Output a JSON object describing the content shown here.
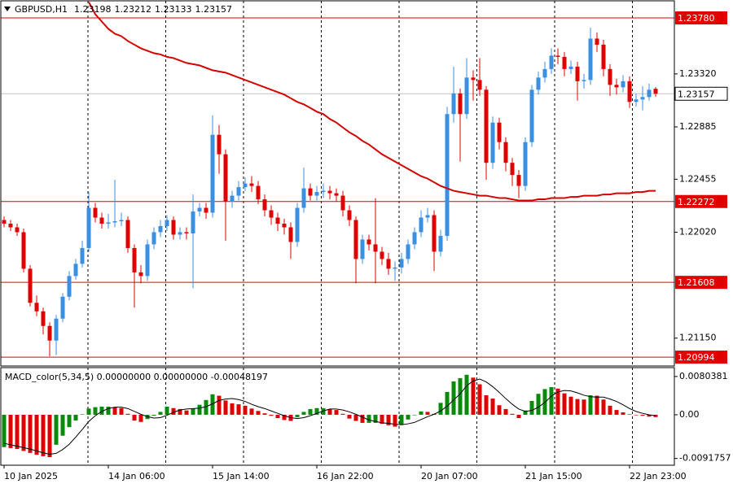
{
  "chart_data": {
    "type": "candlestick",
    "symbol": "GBPUSD,H1",
    "categories": [
      "10 Jan 2025",
      null,
      null,
      null,
      null,
      null,
      null,
      null,
      null,
      null,
      null,
      null,
      null,
      null,
      null,
      null,
      "14 Jan 06:00",
      null,
      null,
      null,
      null,
      null,
      null,
      null,
      null,
      null,
      null,
      null,
      null,
      null,
      null,
      null,
      "15 Jan 14:00",
      null,
      null,
      null,
      null,
      null,
      null,
      null,
      null,
      null,
      null,
      null,
      null,
      null,
      null,
      null,
      "16 Jan 22:00",
      null,
      null,
      null,
      null,
      null,
      null,
      null,
      null,
      null,
      null,
      null,
      null,
      null,
      null,
      null,
      "20 Jan 07:00",
      null,
      null,
      null,
      null,
      null,
      null,
      null,
      null,
      null,
      null,
      null,
      null,
      null,
      null,
      null,
      "21 Jan 15:00",
      null,
      null,
      null,
      null,
      null,
      null,
      null,
      null,
      null,
      null,
      null,
      null,
      null,
      null,
      null,
      "22 Jan 23:00",
      null,
      null,
      null,
      null
    ],
    "ohlc": [
      [
        1.2212,
        1.2215,
        1.2206,
        1.2209
      ],
      [
        1.2209,
        1.2212,
        1.2203,
        1.2206
      ],
      [
        1.2206,
        1.2209,
        1.2199,
        1.2202
      ],
      [
        1.2202,
        1.2205,
        1.2169,
        1.2172
      ],
      [
        1.2172,
        1.2175,
        1.2141,
        1.2144
      ],
      [
        1.2144,
        1.215,
        1.2133,
        1.2137
      ],
      [
        1.2137,
        1.214,
        1.2118,
        1.2125
      ],
      [
        1.2125,
        1.2128,
        1.21,
        1.2113
      ],
      [
        1.2113,
        1.2134,
        1.2101,
        1.2131
      ],
      [
        1.2131,
        1.2152,
        1.2128,
        1.2149
      ],
      [
        1.2149,
        1.217,
        1.2146,
        1.2166
      ],
      [
        1.2166,
        1.218,
        1.2163,
        1.2176
      ],
      [
        1.2176,
        1.2195,
        1.2173,
        1.2189
      ],
      [
        1.2189,
        1.2235,
        1.2186,
        1.2222
      ],
      [
        1.2222,
        1.2226,
        1.221,
        1.2214
      ],
      [
        1.2214,
        1.2218,
        1.2205,
        1.2209
      ],
      [
        1.2209,
        1.2217,
        1.2205,
        1.221
      ],
      [
        1.221,
        1.2245,
        1.2206,
        1.2211
      ],
      [
        1.2211,
        1.2218,
        1.2207,
        1.2212
      ],
      [
        1.2212,
        1.2215,
        1.2185,
        1.2189
      ],
      [
        1.2189,
        1.2192,
        1.214,
        1.2169
      ],
      [
        1.2169,
        1.2175,
        1.216,
        1.2166
      ],
      [
        1.2166,
        1.2196,
        1.2162,
        1.2192
      ],
      [
        1.2192,
        1.2206,
        1.2188,
        1.2202
      ],
      [
        1.2202,
        1.2212,
        1.2198,
        1.2207
      ],
      [
        1.2207,
        1.2216,
        1.2203,
        1.2212
      ],
      [
        1.2212,
        1.2215,
        1.2196,
        1.22
      ],
      [
        1.22,
        1.2206,
        1.2196,
        1.2202
      ],
      [
        1.2202,
        1.2206,
        1.2196,
        1.2201
      ],
      [
        1.2201,
        1.2233,
        1.2156,
        1.2219
      ],
      [
        1.2219,
        1.2226,
        1.2215,
        1.2222
      ],
      [
        1.2222,
        1.2226,
        1.2213,
        1.2218
      ],
      [
        1.2218,
        1.2298,
        1.2214,
        1.2282
      ],
      [
        1.2282,
        1.229,
        1.225,
        1.2266
      ],
      [
        1.2266,
        1.227,
        1.2195,
        1.2227
      ],
      [
        1.2227,
        1.2236,
        1.2222,
        1.2232
      ],
      [
        1.2232,
        1.2244,
        1.2228,
        1.2239
      ],
      [
        1.2239,
        1.2247,
        1.2236,
        1.2242
      ],
      [
        1.2242,
        1.2248,
        1.2235,
        1.224
      ],
      [
        1.224,
        1.2244,
        1.2225,
        1.2229
      ],
      [
        1.2229,
        1.2233,
        1.2215,
        1.222
      ],
      [
        1.222,
        1.2224,
        1.2208,
        1.2214
      ],
      [
        1.2214,
        1.2218,
        1.2203,
        1.2209
      ],
      [
        1.2209,
        1.2213,
        1.22,
        1.2206
      ],
      [
        1.2206,
        1.221,
        1.218,
        1.2194
      ],
      [
        1.2194,
        1.2226,
        1.219,
        1.2222
      ],
      [
        1.2222,
        1.2255,
        1.2218,
        1.2238
      ],
      [
        1.2238,
        1.2242,
        1.2228,
        1.2232
      ],
      [
        1.2232,
        1.224,
        1.2228,
        1.2235
      ],
      [
        1.2235,
        1.2242,
        1.223,
        1.2236
      ],
      [
        1.2236,
        1.224,
        1.2229,
        1.2234
      ],
      [
        1.2234,
        1.2238,
        1.2227,
        1.2232
      ],
      [
        1.2232,
        1.2236,
        1.2215,
        1.222
      ],
      [
        1.222,
        1.2224,
        1.2207,
        1.2212
      ],
      [
        1.2212,
        1.2215,
        1.216,
        1.218
      ],
      [
        1.218,
        1.22,
        1.2176,
        1.2196
      ],
      [
        1.2196,
        1.22,
        1.2187,
        1.2192
      ],
      [
        1.2192,
        1.223,
        1.216,
        1.2186
      ],
      [
        1.2186,
        1.219,
        1.2175,
        1.218
      ],
      [
        1.218,
        1.2185,
        1.2167,
        1.2172
      ],
      [
        1.2172,
        1.2178,
        1.2162,
        1.2173
      ],
      [
        1.2173,
        1.2185,
        1.2168,
        1.218
      ],
      [
        1.218,
        1.2196,
        1.2176,
        1.2192
      ],
      [
        1.2192,
        1.2206,
        1.2188,
        1.2202
      ],
      [
        1.2202,
        1.222,
        1.2198,
        1.2214
      ],
      [
        1.2214,
        1.2222,
        1.221,
        1.2216
      ],
      [
        1.2216,
        1.222,
        1.217,
        1.2186
      ],
      [
        1.2186,
        1.2204,
        1.2182,
        1.2199
      ],
      [
        1.2199,
        1.2305,
        1.2195,
        1.2299
      ],
      [
        1.2299,
        1.2338,
        1.2292,
        1.2316
      ],
      [
        1.2316,
        1.232,
        1.226,
        1.2299
      ],
      [
        1.2299,
        1.2345,
        1.2295,
        1.2329
      ],
      [
        1.2329,
        1.2335,
        1.231,
        1.2327
      ],
      [
        1.2327,
        1.2345,
        1.2314,
        1.2319
      ],
      [
        1.2319,
        1.2322,
        1.2245,
        1.2259
      ],
      [
        1.2259,
        1.2297,
        1.2254,
        1.2292
      ],
      [
        1.2292,
        1.2296,
        1.227,
        1.2276
      ],
      [
        1.2276,
        1.228,
        1.2252,
        1.2259
      ],
      [
        1.2259,
        1.2263,
        1.224,
        1.2249
      ],
      [
        1.2249,
        1.2253,
        1.223,
        1.224
      ],
      [
        1.224,
        1.228,
        1.2236,
        1.2276
      ],
      [
        1.2276,
        1.2323,
        1.2272,
        1.2319
      ],
      [
        1.2319,
        1.2334,
        1.2315,
        1.2329
      ],
      [
        1.2329,
        1.2342,
        1.2325,
        1.2336
      ],
      [
        1.2336,
        1.2353,
        1.2332,
        1.2347
      ],
      [
        1.2347,
        1.2353,
        1.234,
        1.2346
      ],
      [
        1.2346,
        1.235,
        1.233,
        1.2336
      ],
      [
        1.2336,
        1.2343,
        1.2332,
        1.2338
      ],
      [
        1.2338,
        1.2342,
        1.231,
        1.2326
      ],
      [
        1.2326,
        1.2332,
        1.232,
        1.2327
      ],
      [
        1.2327,
        1.237,
        1.2323,
        1.2361
      ],
      [
        1.2361,
        1.2366,
        1.235,
        1.2356
      ],
      [
        1.2356,
        1.236,
        1.233,
        1.2336
      ],
      [
        1.2336,
        1.234,
        1.2314,
        1.2323
      ],
      [
        1.2323,
        1.2328,
        1.2315,
        1.2321
      ],
      [
        1.2321,
        1.2331,
        1.2317,
        1.2326
      ],
      [
        1.2326,
        1.233,
        1.2304,
        1.2309
      ],
      [
        1.2309,
        1.2316,
        1.2305,
        1.2311
      ],
      [
        1.2311,
        1.2322,
        1.2302,
        1.2313
      ],
      [
        1.2313,
        1.2324,
        1.231,
        1.2319
      ],
      [
        1.23198,
        1.23212,
        1.23133,
        1.23157
      ]
    ],
    "up_color": "#3b8fe0",
    "down_color": "#e00000",
    "ylim": [
      1.20921,
      1.23927
    ],
    "yticks": [
      {
        "value": 1.2332,
        "label": "1.23320"
      },
      {
        "value": 1.22885,
        "label": "1.22885"
      },
      {
        "value": 1.22455,
        "label": "1.22455"
      },
      {
        "value": 1.2202,
        "label": "1.22020"
      },
      {
        "value": 1.2115,
        "label": "1.21150"
      }
    ],
    "levels": [
      {
        "value": 1.2378,
        "label": "1.23780"
      },
      {
        "value": 1.22272,
        "label": "1.22272"
      },
      {
        "value": 1.21608,
        "label": "1.21608"
      },
      {
        "value": 1.20994,
        "label": "1.20994"
      }
    ],
    "level_color": "#e00000",
    "ma_color": "#d40000",
    "ma_values": [
      null,
      null,
      null,
      null,
      null,
      null,
      null,
      null,
      null,
      null,
      null,
      null,
      null,
      1.2391,
      1.2381,
      1.2375,
      1.2369,
      1.2365,
      1.2363,
      1.2359,
      1.2356,
      1.2353,
      1.2351,
      1.2349,
      1.2348,
      1.2346,
      1.2345,
      1.2343,
      1.2341,
      1.234,
      1.2339,
      1.2337,
      1.2335,
      1.2334,
      1.2333,
      1.2331,
      1.2329,
      1.2327,
      1.2325,
      1.2323,
      1.2321,
      1.2319,
      1.2317,
      1.2315,
      1.2312,
      1.2309,
      1.2307,
      1.2304,
      1.2301,
      1.2299,
      1.2295,
      1.2292,
      1.2288,
      1.2284,
      1.2281,
      1.2277,
      1.2274,
      1.227,
      1.2266,
      1.2263,
      1.226,
      1.2257,
      1.2254,
      1.2251,
      1.2248,
      1.2246,
      1.2243,
      1.224,
      1.2238,
      1.2236,
      1.2235,
      1.2234,
      1.2233,
      1.2232,
      1.2232,
      1.2231,
      1.223,
      1.223,
      1.2229,
      1.2228,
      1.2228,
      1.2228,
      1.2229,
      1.2229,
      1.223,
      1.223,
      1.223,
      1.2231,
      1.2231,
      1.2232,
      1.2232,
      1.2232,
      1.2233,
      1.2233,
      1.2234,
      1.2234,
      1.2234,
      1.2235,
      1.2235,
      1.2236,
      1.2236
    ],
    "grid": true,
    "macd": {
      "title": "MACD_color(5,34,5) 0.00000000 0.00000000 -0.00048197",
      "values": [
        -0.0068,
        -0.007,
        -0.0072,
        -0.0076,
        -0.008,
        -0.0084,
        -0.0087,
        -0.0089,
        -0.0063,
        -0.0044,
        -0.0026,
        -0.0012,
        0.0001,
        0.0013,
        0.0016,
        0.0017,
        0.0017,
        0.0016,
        0.0014,
        0.0002,
        -0.0012,
        -0.0015,
        -0.0009,
        -0.0002,
        0.0006,
        0.0017,
        0.0014,
        0.0012,
        0.0009,
        0.0013,
        0.0021,
        0.0031,
        0.0043,
        0.004,
        0.003,
        0.0024,
        0.0022,
        0.0019,
        0.0013,
        0.0008,
        0.0003,
        -0.0002,
        -0.0007,
        -0.0011,
        -0.0013,
        -0.0005,
        0.0006,
        0.0012,
        0.0014,
        0.0014,
        0.0012,
        0.001,
        0.0002,
        -0.0008,
        -0.0013,
        -0.0017,
        -0.0017,
        -0.0017,
        -0.0019,
        -0.0022,
        -0.0025,
        -0.0021,
        -0.001,
        -0.0001,
        0.0007,
        0.0006,
        0.0002,
        0.0025,
        0.0048,
        0.007,
        0.0077,
        0.0084,
        0.0078,
        0.0064,
        0.0041,
        0.0034,
        0.002,
        0.0012,
        0.0002,
        -0.0007,
        0.0009,
        0.0029,
        0.0044,
        0.0054,
        0.0058,
        0.0055,
        0.0045,
        0.0038,
        0.0033,
        0.0032,
        0.0041,
        0.004,
        0.0032,
        0.0019,
        0.001,
        0.0005,
        0.0001,
        -0.0001,
        -0.0002,
        -0.0004,
        -0.00048197
      ],
      "signal": [
        -0.006,
        -0.0063,
        -0.0066,
        -0.0069,
        -0.0072,
        -0.0076,
        -0.008,
        -0.0083,
        -0.0081,
        -0.0073,
        -0.0062,
        -0.0047,
        -0.0031,
        -0.0014,
        -0.0002,
        0.0007,
        0.0013,
        0.0016,
        0.0016,
        0.0013,
        0.0007,
        0.0001,
        -0.0004,
        -0.0007,
        -0.0006,
        -0.0001,
        0.0005,
        0.001,
        0.0012,
        0.0013,
        0.0014,
        0.0017,
        0.0023,
        0.003,
        0.0033,
        0.0034,
        0.0032,
        0.0028,
        0.0022,
        0.0017,
        0.0013,
        0.0008,
        0.0003,
        -0.0002,
        -0.0006,
        -0.0008,
        -0.0006,
        -0.0002,
        0.0003,
        0.0008,
        0.0012,
        0.0012,
        0.001,
        0.0006,
        0.0001,
        -0.0005,
        -0.0011,
        -0.0014,
        -0.0017,
        -0.0018,
        -0.002,
        -0.0021,
        -0.0019,
        -0.0016,
        -0.001,
        -0.0004,
        0.0001,
        0.0008,
        0.0018,
        0.0031,
        0.0044,
        0.0061,
        0.0071,
        0.0075,
        0.0069,
        0.0059,
        0.0047,
        0.0034,
        0.0022,
        0.0012,
        0.0007,
        0.0009,
        0.0016,
        0.0026,
        0.0039,
        0.0048,
        0.0051,
        0.005,
        0.0046,
        0.0041,
        0.0038,
        0.0037,
        0.0037,
        0.0033,
        0.0028,
        0.0021,
        0.0013,
        0.0007,
        0.0003,
        0,
        -0.0002
      ],
      "ylim": [
        -0.0106,
        0.0099
      ],
      "yticks": [
        0.0080381,
        {
          "value": 0,
          "label": "0.00"
        },
        -0.0091757
      ],
      "up_color": "#0a8a0a",
      "down_color": "#e00000",
      "signal_color": "#000000"
    }
  }
}
